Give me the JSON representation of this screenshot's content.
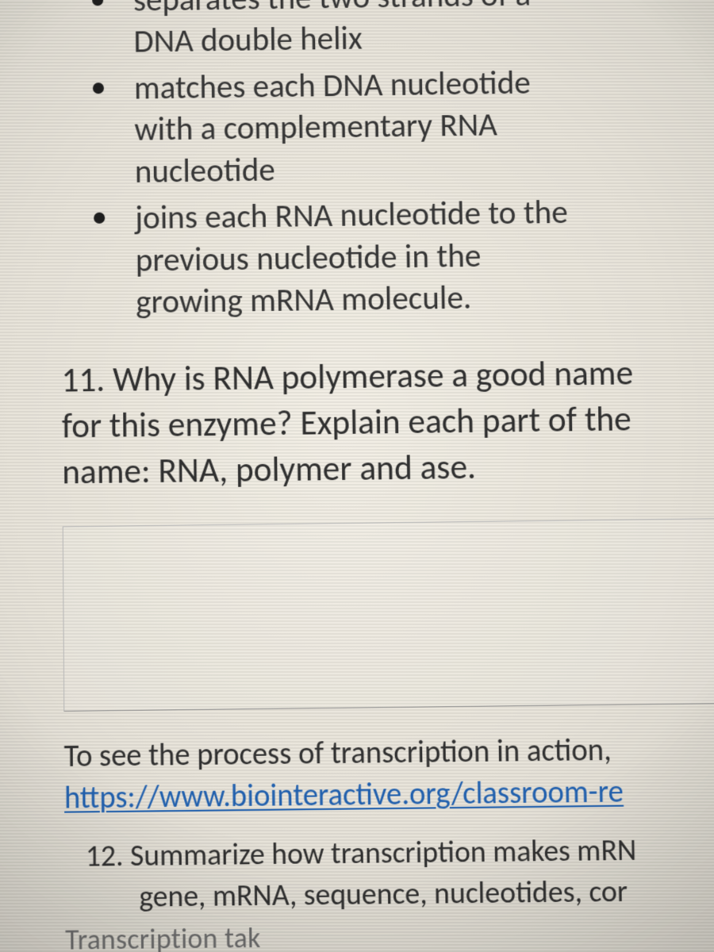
{
  "functions": {
    "item1": "separates the two strands of a",
    "item1_line2": "DNA double helix",
    "item2": "matches each DNA nucleotide",
    "item2_line2": "with a complementary RNA",
    "item2_line3": "nucleotide",
    "item3": "joins each RNA nucleotide to the",
    "item3_line2": "previous nucleotide in the",
    "item3_line3": "growing mRNA molecule."
  },
  "q11": {
    "text_l1": "11. Why is RNA polymerase a good name",
    "text_l2": "for this enzyme? Explain each part of the",
    "text_l3": "name: RNA, polymer and ase."
  },
  "see": {
    "intro": "To see the process of transcription in action,",
    "link": "https://www.biointeractive.org/classroom-re"
  },
  "q12": {
    "text_l1": "12. Summarize how transcription makes mRN",
    "text_l2": "gene, mRNA, sequence, nucleotides, cor"
  },
  "answer_start": "Transcription tak"
}
